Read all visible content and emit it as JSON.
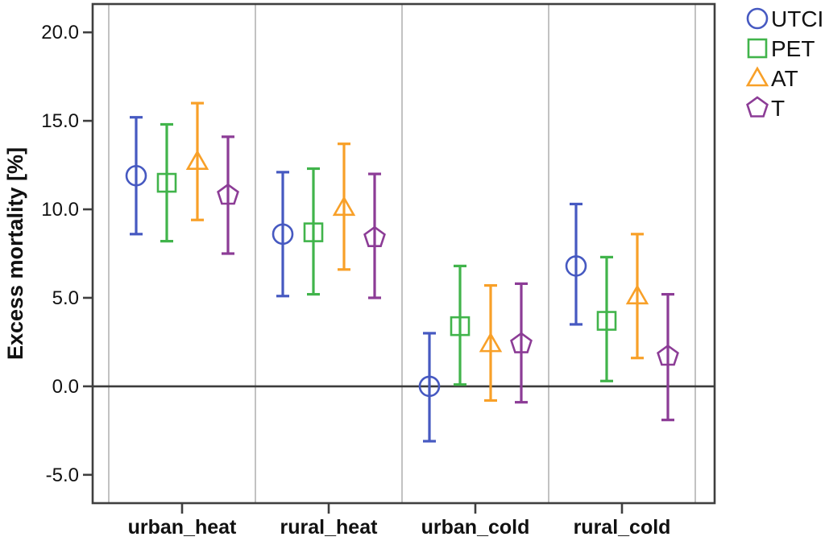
{
  "chart_data": {
    "type": "errorbar",
    "title": "",
    "xlabel": "",
    "ylabel": "Excess mortality [%]",
    "ylim": [
      -6.6,
      21.6
    ],
    "yticks": [
      20.0,
      15.0,
      10.0,
      5.0,
      0.0,
      -5.0
    ],
    "ytick_labels": [
      "20.0",
      "15.0",
      "10.0",
      "5.0",
      "0.0",
      "-5.0"
    ],
    "zero_line": 0.0,
    "grid": "vertical-category-dividers",
    "legend_position": "top-right",
    "categories": [
      "urban_heat",
      "rural_heat",
      "urban_cold",
      "rural_cold"
    ],
    "series": [
      {
        "name": "UTCI",
        "marker": "circle",
        "color": "#4659c1",
        "values": [
          11.9,
          8.6,
          0.0,
          6.8
        ],
        "ci_low": [
          8.6,
          5.1,
          -3.1,
          3.5
        ],
        "ci_high": [
          15.2,
          12.1,
          3.0,
          10.3
        ]
      },
      {
        "name": "PET",
        "marker": "square",
        "color": "#41b44b",
        "values": [
          11.5,
          8.7,
          3.4,
          3.7
        ],
        "ci_low": [
          8.2,
          5.2,
          0.1,
          0.3
        ],
        "ci_high": [
          14.8,
          12.3,
          6.8,
          7.3
        ]
      },
      {
        "name": "AT",
        "marker": "triangle",
        "color": "#f8a028",
        "values": [
          12.7,
          10.1,
          2.4,
          5.1
        ],
        "ci_low": [
          9.4,
          6.6,
          -0.8,
          1.6
        ],
        "ci_high": [
          16.0,
          13.7,
          5.7,
          8.6
        ]
      },
      {
        "name": "T",
        "marker": "pentagon",
        "color": "#8c3c96",
        "values": [
          10.8,
          8.4,
          2.4,
          1.7
        ],
        "ci_low": [
          7.5,
          5.0,
          -0.9,
          -1.9
        ],
        "ci_high": [
          14.1,
          12.0,
          5.8,
          5.2
        ]
      }
    ],
    "colors": {
      "axis": "#3f3f3f",
      "zero_line": "#3c3c3c",
      "divider": "#b3b3b3",
      "text": "#111111"
    }
  }
}
